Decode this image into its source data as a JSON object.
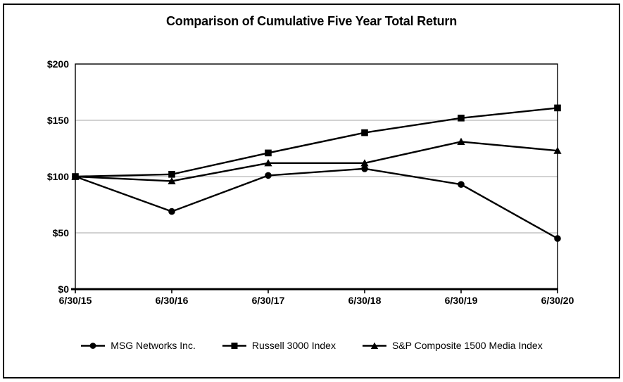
{
  "chart_data": {
    "type": "line",
    "title": "Comparison of Cumulative Five Year Total Return",
    "categories": [
      "6/30/15",
      "6/30/16",
      "6/30/17",
      "6/30/18",
      "6/30/19",
      "6/30/20"
    ],
    "series": [
      {
        "name": "MSG Networks Inc.",
        "marker": "circle",
        "values": [
          100,
          69,
          101,
          107,
          93,
          45
        ]
      },
      {
        "name": "Russell 3000 Index",
        "marker": "square",
        "values": [
          100,
          102,
          121,
          139,
          152,
          161
        ]
      },
      {
        "name": "S&P Composite 1500 Media Index",
        "marker": "triangle",
        "values": [
          100,
          96,
          112,
          112,
          131,
          123
        ]
      }
    ],
    "xlabel": "",
    "ylabel": "",
    "ylim": [
      0,
      200
    ],
    "yticks": [
      0,
      50,
      100,
      150,
      200
    ],
    "ytick_labels": [
      "$0",
      "$50",
      "$100",
      "$150",
      "$200"
    ],
    "grid": true,
    "legend_position": "bottom",
    "colors": {
      "series": "#000000",
      "gridline": "#a6a6a6",
      "axis": "#000000",
      "background": "#ffffff",
      "frame_border": "#000000"
    }
  }
}
